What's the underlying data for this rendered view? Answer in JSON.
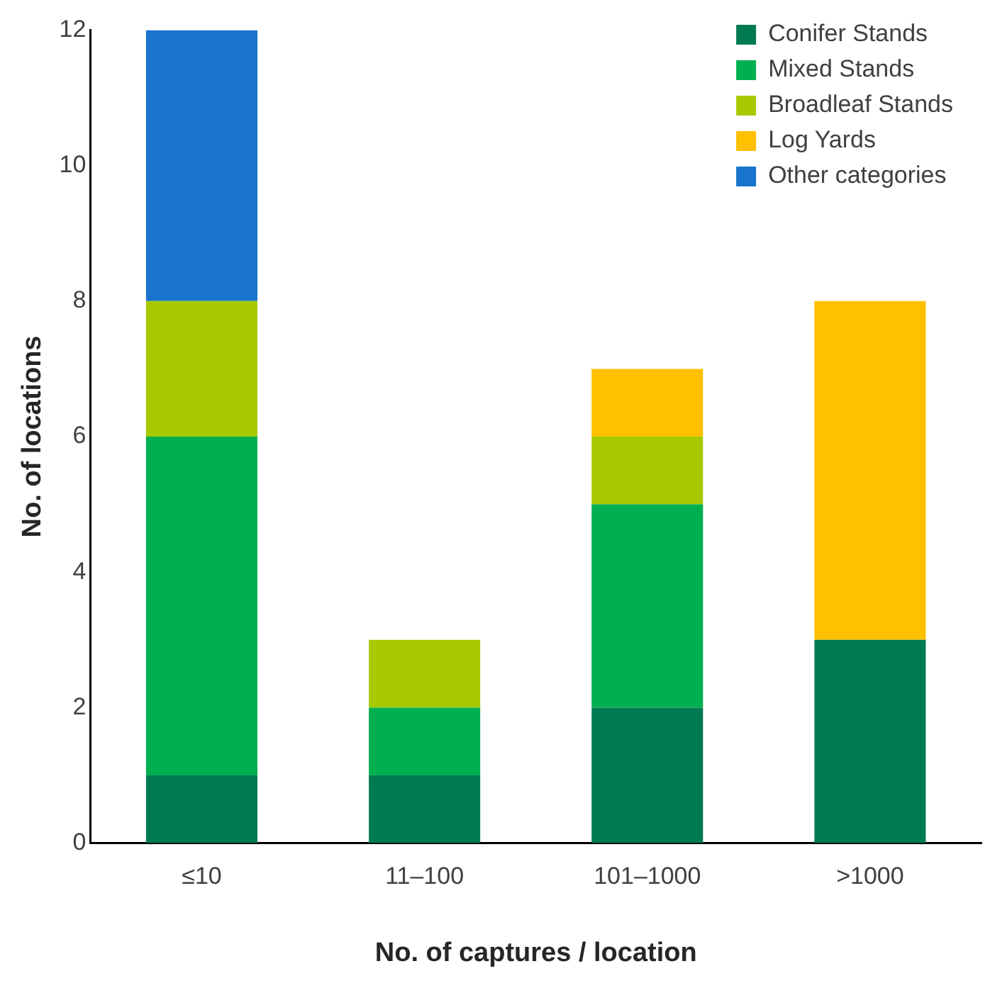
{
  "chart_data": {
    "type": "bar",
    "xlabel": "No. of captures / location",
    "ylabel": "No. of locations",
    "categories": [
      "≤10",
      "11–100",
      "101–1000",
      ">1000"
    ],
    "series": [
      {
        "name": "Conifer Stands",
        "color": "#007a53",
        "values": [
          1,
          1,
          2,
          3
        ]
      },
      {
        "name": "Mixed Stands",
        "color": "#00b050",
        "values": [
          5,
          1,
          3,
          0
        ]
      },
      {
        "name": "Broadleaf Stands",
        "color": "#a6c900",
        "values": [
          2,
          1,
          1,
          0
        ]
      },
      {
        "name": "Log Yards",
        "color": "#ffc000",
        "values": [
          0,
          0,
          1,
          5
        ]
      },
      {
        "name": "Other categories",
        "color": "#1874cd",
        "values": [
          4,
          0,
          0,
          0
        ]
      }
    ],
    "stacked": true,
    "ylim": [
      0,
      12
    ],
    "yticks": [
      0,
      2,
      4,
      6,
      8,
      10,
      12
    ],
    "grid": false,
    "legend": "top right"
  }
}
